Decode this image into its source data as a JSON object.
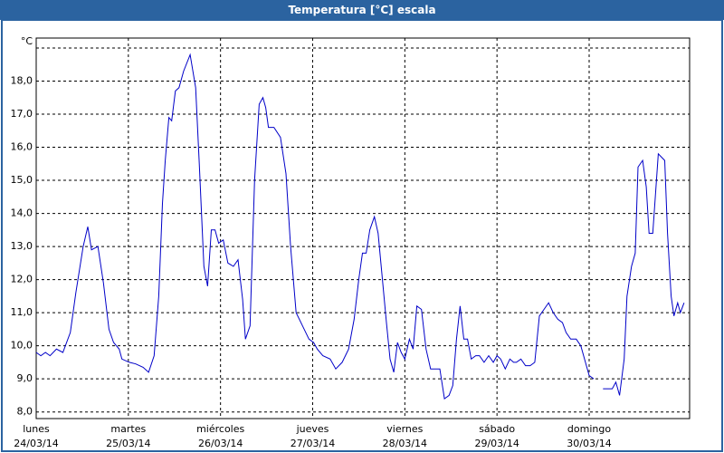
{
  "chart_data": {
    "type": "line",
    "title": "Temperatura [°C] escala",
    "x": [
      0.0,
      0.05,
      0.1,
      0.15,
      0.22,
      0.29,
      0.37,
      0.43,
      0.51,
      0.56,
      0.6,
      0.67,
      0.73,
      0.79,
      0.84,
      0.9,
      0.93,
      1.01,
      1.08,
      1.16,
      1.22,
      1.28,
      1.33,
      1.37,
      1.4,
      1.44,
      1.47,
      1.51,
      1.55,
      1.6,
      1.67,
      1.73,
      1.77,
      1.82,
      1.86,
      1.9,
      1.94,
      1.98,
      2.03,
      2.08,
      2.14,
      2.19,
      2.24,
      2.27,
      2.32,
      2.37,
      2.42,
      2.46,
      2.49,
      2.52,
      2.58,
      2.65,
      2.71,
      2.76,
      2.82,
      2.89,
      2.96,
      3.01,
      3.05,
      3.11,
      3.19,
      3.25,
      3.32,
      3.39,
      3.45,
      3.5,
      3.54,
      3.58,
      3.62,
      3.67,
      3.71,
      3.75,
      3.8,
      3.84,
      3.88,
      3.92,
      3.96,
      4.0,
      4.05,
      4.09,
      4.13,
      4.18,
      4.23,
      4.28,
      4.33,
      4.38,
      4.43,
      4.48,
      4.52,
      4.56,
      4.6,
      4.64,
      4.68,
      4.72,
      4.77,
      4.81,
      4.86,
      4.91,
      4.96,
      5.0,
      5.04,
      5.09,
      5.14,
      5.18,
      5.21,
      5.26,
      5.31,
      5.36,
      5.41,
      5.46,
      5.51,
      5.56,
      5.61,
      5.66,
      5.71,
      5.75,
      5.8,
      5.86,
      5.91,
      5.96,
      6.0,
      6.05,
      6.08,
      6.15,
      6.25,
      6.29,
      6.33,
      6.38,
      6.41,
      6.46,
      6.5,
      6.53,
      6.58,
      6.62,
      6.65,
      6.69,
      6.75,
      6.82,
      6.85,
      6.89,
      6.92,
      6.96,
      6.99,
      7.03
    ],
    "series": [
      {
        "color": "#0000c8",
        "values": [
          9.8,
          9.7,
          9.8,
          9.7,
          9.9,
          9.8,
          10.4,
          11.6,
          13.0,
          13.6,
          12.9,
          13.0,
          11.9,
          10.5,
          10.1,
          9.9,
          9.6,
          9.5,
          9.45,
          9.35,
          9.2,
          9.7,
          11.5,
          14.3,
          15.6,
          16.9,
          16.8,
          17.7,
          17.8,
          18.3,
          18.8,
          17.8,
          15.5,
          12.4,
          11.8,
          13.5,
          13.5,
          13.1,
          13.2,
          12.5,
          12.4,
          12.6,
          11.4,
          10.2,
          10.6,
          15.0,
          17.3,
          17.5,
          17.2,
          16.6,
          16.6,
          16.3,
          15.2,
          13.0,
          11.0,
          10.6,
          10.2,
          10.1,
          9.9,
          9.7,
          9.6,
          9.3,
          9.5,
          9.9,
          10.8,
          12.0,
          12.8,
          12.8,
          13.5,
          13.9,
          13.4,
          12.2,
          10.7,
          9.6,
          9.2,
          10.1,
          9.8,
          9.6,
          10.2,
          9.9,
          11.2,
          11.1,
          9.9,
          9.3,
          9.3,
          9.3,
          8.4,
          8.5,
          8.8,
          10.2,
          11.2,
          10.2,
          10.2,
          9.6,
          9.7,
          9.7,
          9.5,
          9.7,
          9.5,
          9.7,
          9.6,
          9.3,
          9.6,
          9.5,
          9.5,
          9.6,
          9.4,
          9.4,
          9.5,
          10.9,
          11.1,
          11.3,
          11.0,
          10.8,
          10.7,
          10.4,
          10.2,
          10.2,
          10.0,
          9.5,
          9.1,
          9.0,
          null,
          8.7,
          8.7,
          8.9,
          8.5,
          9.6,
          11.5,
          12.4,
          12.8,
          15.4,
          15.6,
          14.8,
          13.4,
          13.4,
          15.8,
          15.6,
          13.4,
          11.5,
          10.9,
          11.3,
          11.0,
          11.3
        ]
      }
    ],
    "xlim": [
      0,
      7.09
    ],
    "xticks": [
      {
        "value": 0,
        "label": "lunes\n24/03/14"
      },
      {
        "value": 1,
        "label": "martes\n25/03/14"
      },
      {
        "value": 2,
        "label": "miércoles\n26/03/14"
      },
      {
        "value": 3,
        "label": "jueves\n27/03/14"
      },
      {
        "value": 4,
        "label": "viernes\n28/03/14"
      },
      {
        "value": 5,
        "label": "sábado\n29/03/14"
      },
      {
        "value": 6,
        "label": "domingo\n30/03/14"
      }
    ],
    "ylim": [
      7.8,
      19.3
    ],
    "yticks": [
      {
        "value": 8,
        "label": "8,0"
      },
      {
        "value": 9,
        "label": "9,0"
      },
      {
        "value": 10,
        "label": "10,0"
      },
      {
        "value": 11,
        "label": "11,0"
      },
      {
        "value": 12,
        "label": "12,0"
      },
      {
        "value": 13,
        "label": "13,0"
      },
      {
        "value": 14,
        "label": "14,0"
      },
      {
        "value": 15,
        "label": "15,0"
      },
      {
        "value": 16,
        "label": "16,0"
      },
      {
        "value": 17,
        "label": "17,0"
      },
      {
        "value": 18,
        "label": "18,0"
      },
      {
        "value": 19,
        "label": "°C"
      }
    ],
    "grid": true
  }
}
